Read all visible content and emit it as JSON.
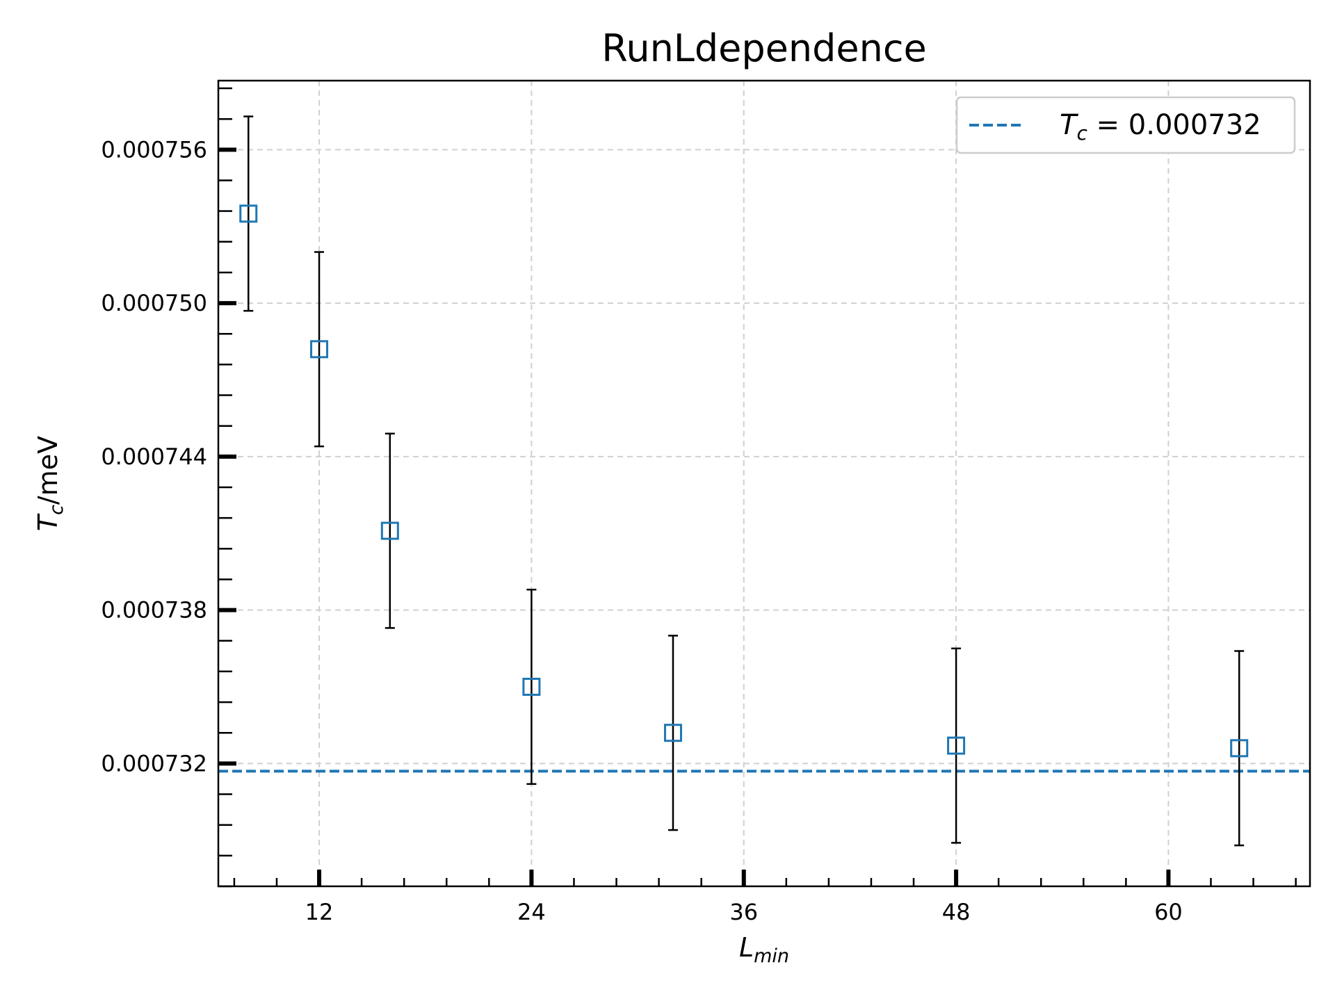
{
  "chart_data": {
    "type": "scatter",
    "title": "RunLdependence",
    "xlabel_main": "L",
    "xlabel_sub": "min",
    "ylabel_main": "T",
    "ylabel_sub": "c",
    "ylabel_suffix": "/meV",
    "xlim": [
      6.3,
      68.0
    ],
    "ylim": [
      0.0007272,
      0.0007587
    ],
    "x_major_ticks": [
      12,
      24,
      36,
      48,
      60
    ],
    "x_tick_labels": [
      "12",
      "24",
      "36",
      "48",
      "60"
    ],
    "x_minor_step": 2.4,
    "y_major_ticks": [
      0.000732,
      0.000738,
      0.000744,
      0.00075,
      0.000756
    ],
    "y_tick_labels": [
      "0.000732",
      "0.000738",
      "0.000744",
      "0.000750",
      "0.000756"
    ],
    "y_minor_step": 1.2e-06,
    "grid": true,
    "series": [
      {
        "marker": "open-square",
        "color": "#1f77b4",
        "x": [
          8,
          12,
          16,
          24,
          32,
          48,
          64
        ],
        "y": [
          0.0007535,
          0.0007482,
          0.0007411,
          0.000735,
          0.0007332,
          0.0007327,
          0.0007326
        ],
        "yerr": [
          3.8e-06,
          3.8e-06,
          3.8e-06,
          3.8e-06,
          3.8e-06,
          3.8e-06,
          3.8e-06
        ]
      }
    ],
    "reference_line": {
      "y": 0.0007317,
      "color": "#1f77b4",
      "style": "dashed",
      "legend_symbol": "T",
      "legend_sub": "c",
      "legend_value": " = 0.000732"
    },
    "legend_position": "top-right"
  }
}
